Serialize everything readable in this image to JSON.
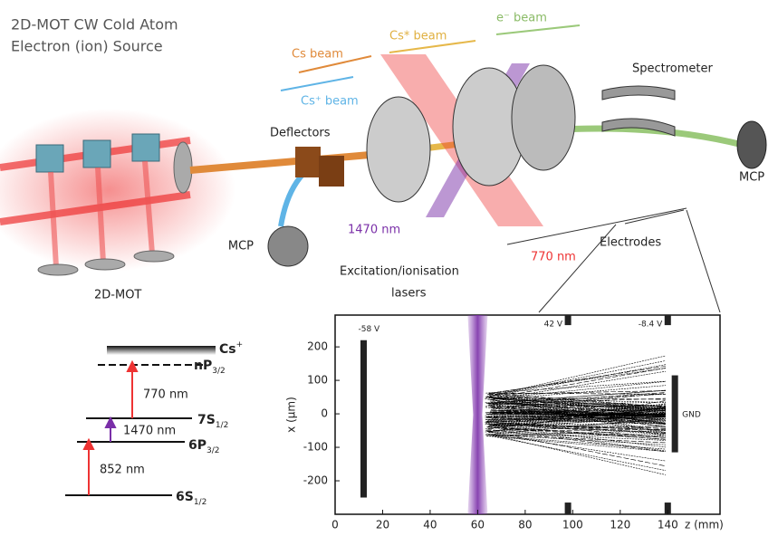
{
  "header": {
    "title_lines": [
      "2D-MOT CW Cold Atom",
      "Electron (ion) Source"
    ]
  },
  "apparatus_labels": {
    "cs_beam": "Cs beam",
    "cs_star_beam": "Cs* beam",
    "e_beam": "e⁻ beam",
    "cs_plus_beam": "Cs⁺ beam",
    "spectrometer": "Spectrometer",
    "deflectors": "Deflectors",
    "mcp_right": "MCP",
    "mcp_left": "MCP",
    "laser_1470": "1470 nm",
    "laser_770": "770 nm",
    "electrodes": "Electrodes",
    "lasers_line1": "Excitation/ionisation",
    "lasers_line2": "lasers",
    "mot": "2D-MOT"
  },
  "energy_levels": {
    "levels": [
      {
        "main": "Cs",
        "sup": "+"
      },
      {
        "main": "nP",
        "sub": "3/2"
      },
      {
        "main": "7S",
        "sub": "1/2"
      },
      {
        "main": "6P",
        "sub": "3/2"
      },
      {
        "main": "6S",
        "sub": "1/2"
      }
    ],
    "transitions": [
      "770 nm",
      "1470 nm",
      "852 nm"
    ]
  },
  "chart_data": {
    "type": "electrode-map",
    "x_label": "z (mm)",
    "y_label": "x (µm)",
    "xlim": [
      0,
      162
    ],
    "ylim": [
      -300,
      295
    ],
    "xticks": [
      0,
      20,
      40,
      60,
      80,
      100,
      120,
      140
    ],
    "yticks": [
      -200,
      -100,
      0,
      100,
      200
    ],
    "laser_z": 60,
    "electrodes": [
      {
        "label": "-58 V",
        "z": 12,
        "segments": [
          [
            -250,
            220
          ]
        ]
      },
      {
        "label": "42 V",
        "z": 98,
        "segments": [
          [
            265,
            295
          ],
          [
            -300,
            -265
          ]
        ]
      },
      {
        "label": "-8.4 V",
        "z": 140,
        "segments": [
          [
            265,
            295
          ],
          [
            -300,
            -265
          ]
        ]
      },
      {
        "label": "GND",
        "z": 143,
        "segments": [
          [
            -115,
            115
          ]
        ]
      }
    ]
  }
}
